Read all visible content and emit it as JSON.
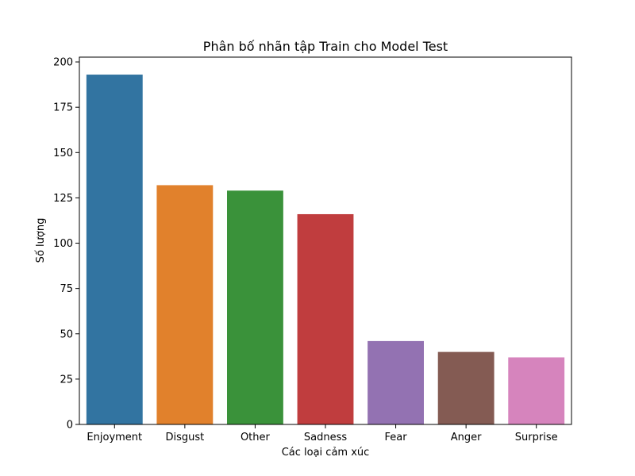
{
  "chart_data": {
    "type": "bar",
    "title": "Phân bố nhãn tập Train cho Model Test",
    "xlabel": "Các loại cảm xúc",
    "ylabel": "Số lượng",
    "categories": [
      "Enjoyment",
      "Disgust",
      "Other",
      "Sadness",
      "Fear",
      "Anger",
      "Surprise"
    ],
    "values": [
      193,
      132,
      129,
      116,
      46,
      40,
      37
    ],
    "colors": [
      "#3274a1",
      "#e1812c",
      "#3a923a",
      "#c03d3e",
      "#9372b2",
      "#845b53",
      "#d684bd"
    ],
    "ylim": [
      0,
      202.65
    ],
    "yticks": [
      0,
      25,
      50,
      75,
      100,
      125,
      150,
      175,
      200
    ],
    "grid": false,
    "legend": "none"
  }
}
